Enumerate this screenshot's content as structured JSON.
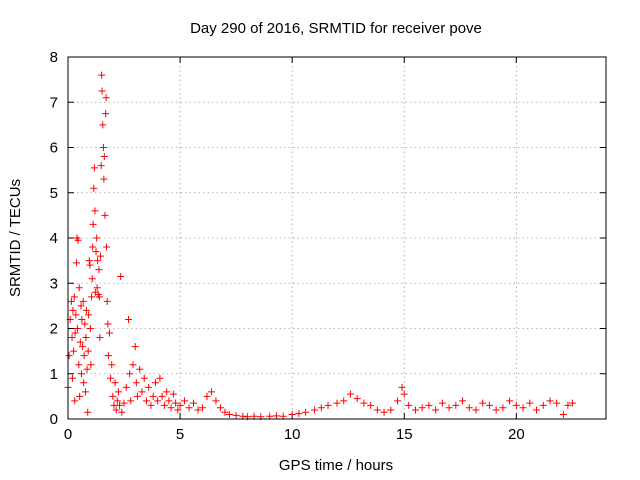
{
  "chart_data": {
    "type": "scatter",
    "title": "Day 290 of 2016, SRMTID for receiver pove",
    "xlabel": "GPS time / hours",
    "ylabel": "SRMTID / TECUs",
    "xlim": [
      0,
      24
    ],
    "ylim": [
      0,
      8
    ],
    "xticks": [
      0,
      5,
      10,
      15,
      20
    ],
    "yticks": [
      0,
      1,
      2,
      3,
      4,
      5,
      6,
      7,
      8
    ],
    "grid": true,
    "marker": "plus",
    "color": "#ff0000",
    "series": [
      {
        "name": "SRMTID",
        "points": [
          [
            0.0,
            0.7
          ],
          [
            0.05,
            1.4
          ],
          [
            0.1,
            2.2
          ],
          [
            0.15,
            2.6
          ],
          [
            0.18,
            1.8
          ],
          [
            0.2,
            0.9
          ],
          [
            0.22,
            2.4
          ],
          [
            0.25,
            1.5
          ],
          [
            0.28,
            2.7
          ],
          [
            0.3,
            0.4
          ],
          [
            0.32,
            1.9
          ],
          [
            0.35,
            2.3
          ],
          [
            0.38,
            3.45
          ],
          [
            0.4,
            4.0
          ],
          [
            0.42,
            2.0
          ],
          [
            0.45,
            3.95
          ],
          [
            0.48,
            1.2
          ],
          [
            0.5,
            2.9
          ],
          [
            0.52,
            0.5
          ],
          [
            0.55,
            1.7
          ],
          [
            0.58,
            2.5
          ],
          [
            0.6,
            1.0
          ],
          [
            0.62,
            2.2
          ],
          [
            0.65,
            1.6
          ],
          [
            0.68,
            2.6
          ],
          [
            0.7,
            0.8
          ],
          [
            0.72,
            1.4
          ],
          [
            0.75,
            2.1
          ],
          [
            0.78,
            0.6
          ],
          [
            0.8,
            1.8
          ],
          [
            0.82,
            2.4
          ],
          [
            0.85,
            1.1
          ],
          [
            0.88,
            0.15
          ],
          [
            0.9,
            1.5
          ],
          [
            0.92,
            2.3
          ],
          [
            0.95,
            3.5
          ],
          [
            0.98,
            3.4
          ],
          [
            1.0,
            2.0
          ],
          [
            1.02,
            1.2
          ],
          [
            1.05,
            2.7
          ],
          [
            1.08,
            3.1
          ],
          [
            1.1,
            3.8
          ],
          [
            1.12,
            4.3
          ],
          [
            1.15,
            5.1
          ],
          [
            1.18,
            5.55
          ],
          [
            1.2,
            4.6
          ],
          [
            1.22,
            2.8
          ],
          [
            1.25,
            3.7
          ],
          [
            1.28,
            4.0
          ],
          [
            1.3,
            2.9
          ],
          [
            1.32,
            3.5
          ],
          [
            1.35,
            2.75
          ],
          [
            1.38,
            3.3
          ],
          [
            1.4,
            2.7
          ],
          [
            1.42,
            1.8
          ],
          [
            1.45,
            3.6
          ],
          [
            1.48,
            5.6
          ],
          [
            1.5,
            7.6
          ],
          [
            1.52,
            7.25
          ],
          [
            1.55,
            6.5
          ],
          [
            1.58,
            6.0
          ],
          [
            1.6,
            5.3
          ],
          [
            1.62,
            5.8
          ],
          [
            1.65,
            4.5
          ],
          [
            1.68,
            6.75
          ],
          [
            1.7,
            7.1
          ],
          [
            1.72,
            3.8
          ],
          [
            1.75,
            2.6
          ],
          [
            1.78,
            2.1
          ],
          [
            1.8,
            1.4
          ],
          [
            1.85,
            1.9
          ],
          [
            1.9,
            0.9
          ],
          [
            1.95,
            1.2
          ],
          [
            2.0,
            0.5
          ],
          [
            2.05,
            0.3
          ],
          [
            2.1,
            0.8
          ],
          [
            2.15,
            0.2
          ],
          [
            2.2,
            0.4
          ],
          [
            2.25,
            0.6
          ],
          [
            2.3,
            0.3
          ],
          [
            2.35,
            3.15
          ],
          [
            2.4,
            0.15
          ],
          [
            2.5,
            0.35
          ],
          [
            2.6,
            0.7
          ],
          [
            2.7,
            2.2
          ],
          [
            2.75,
            1.0
          ],
          [
            2.8,
            0.4
          ],
          [
            2.9,
            1.2
          ],
          [
            3.0,
            1.6
          ],
          [
            3.05,
            0.8
          ],
          [
            3.1,
            0.5
          ],
          [
            3.2,
            1.1
          ],
          [
            3.3,
            0.6
          ],
          [
            3.4,
            0.9
          ],
          [
            3.5,
            0.4
          ],
          [
            3.6,
            0.7
          ],
          [
            3.7,
            0.3
          ],
          [
            3.8,
            0.5
          ],
          [
            3.9,
            0.8
          ],
          [
            4.0,
            0.4
          ],
          [
            4.1,
            0.9
          ],
          [
            4.2,
            0.5
          ],
          [
            4.3,
            0.3
          ],
          [
            4.4,
            0.6
          ],
          [
            4.5,
            0.4
          ],
          [
            4.6,
            0.25
          ],
          [
            4.7,
            0.55
          ],
          [
            4.8,
            0.35
          ],
          [
            4.9,
            0.2
          ],
          [
            5.0,
            0.3
          ],
          [
            5.2,
            0.4
          ],
          [
            5.4,
            0.25
          ],
          [
            5.6,
            0.35
          ],
          [
            5.8,
            0.2
          ],
          [
            6.0,
            0.25
          ],
          [
            6.2,
            0.5
          ],
          [
            6.4,
            0.6
          ],
          [
            6.6,
            0.4
          ],
          [
            6.8,
            0.25
          ],
          [
            7.0,
            0.15
          ],
          [
            7.2,
            0.1
          ],
          [
            7.5,
            0.08
          ],
          [
            7.8,
            0.06
          ],
          [
            8.0,
            0.05
          ],
          [
            8.3,
            0.06
          ],
          [
            8.6,
            0.05
          ],
          [
            9.0,
            0.06
          ],
          [
            9.3,
            0.07
          ],
          [
            9.6,
            0.06
          ],
          [
            10.0,
            0.1
          ],
          [
            10.3,
            0.12
          ],
          [
            10.6,
            0.15
          ],
          [
            11.0,
            0.2
          ],
          [
            11.3,
            0.25
          ],
          [
            11.6,
            0.3
          ],
          [
            12.0,
            0.35
          ],
          [
            12.3,
            0.4
          ],
          [
            12.6,
            0.55
          ],
          [
            12.9,
            0.45
          ],
          [
            13.2,
            0.35
          ],
          [
            13.5,
            0.3
          ],
          [
            13.8,
            0.2
          ],
          [
            14.1,
            0.15
          ],
          [
            14.4,
            0.2
          ],
          [
            14.7,
            0.4
          ],
          [
            14.9,
            0.7
          ],
          [
            15.0,
            0.55
          ],
          [
            15.2,
            0.3
          ],
          [
            15.5,
            0.2
          ],
          [
            15.8,
            0.25
          ],
          [
            16.1,
            0.3
          ],
          [
            16.4,
            0.2
          ],
          [
            16.7,
            0.35
          ],
          [
            17.0,
            0.25
          ],
          [
            17.3,
            0.3
          ],
          [
            17.6,
            0.4
          ],
          [
            17.9,
            0.25
          ],
          [
            18.2,
            0.2
          ],
          [
            18.5,
            0.35
          ],
          [
            18.8,
            0.3
          ],
          [
            19.1,
            0.2
          ],
          [
            19.4,
            0.25
          ],
          [
            19.7,
            0.4
          ],
          [
            20.0,
            0.3
          ],
          [
            20.3,
            0.25
          ],
          [
            20.6,
            0.35
          ],
          [
            20.9,
            0.2
          ],
          [
            21.2,
            0.3
          ],
          [
            21.5,
            0.4
          ],
          [
            21.8,
            0.35
          ],
          [
            22.1,
            0.1
          ],
          [
            22.3,
            0.3
          ],
          [
            22.5,
            0.35
          ]
        ]
      }
    ]
  }
}
